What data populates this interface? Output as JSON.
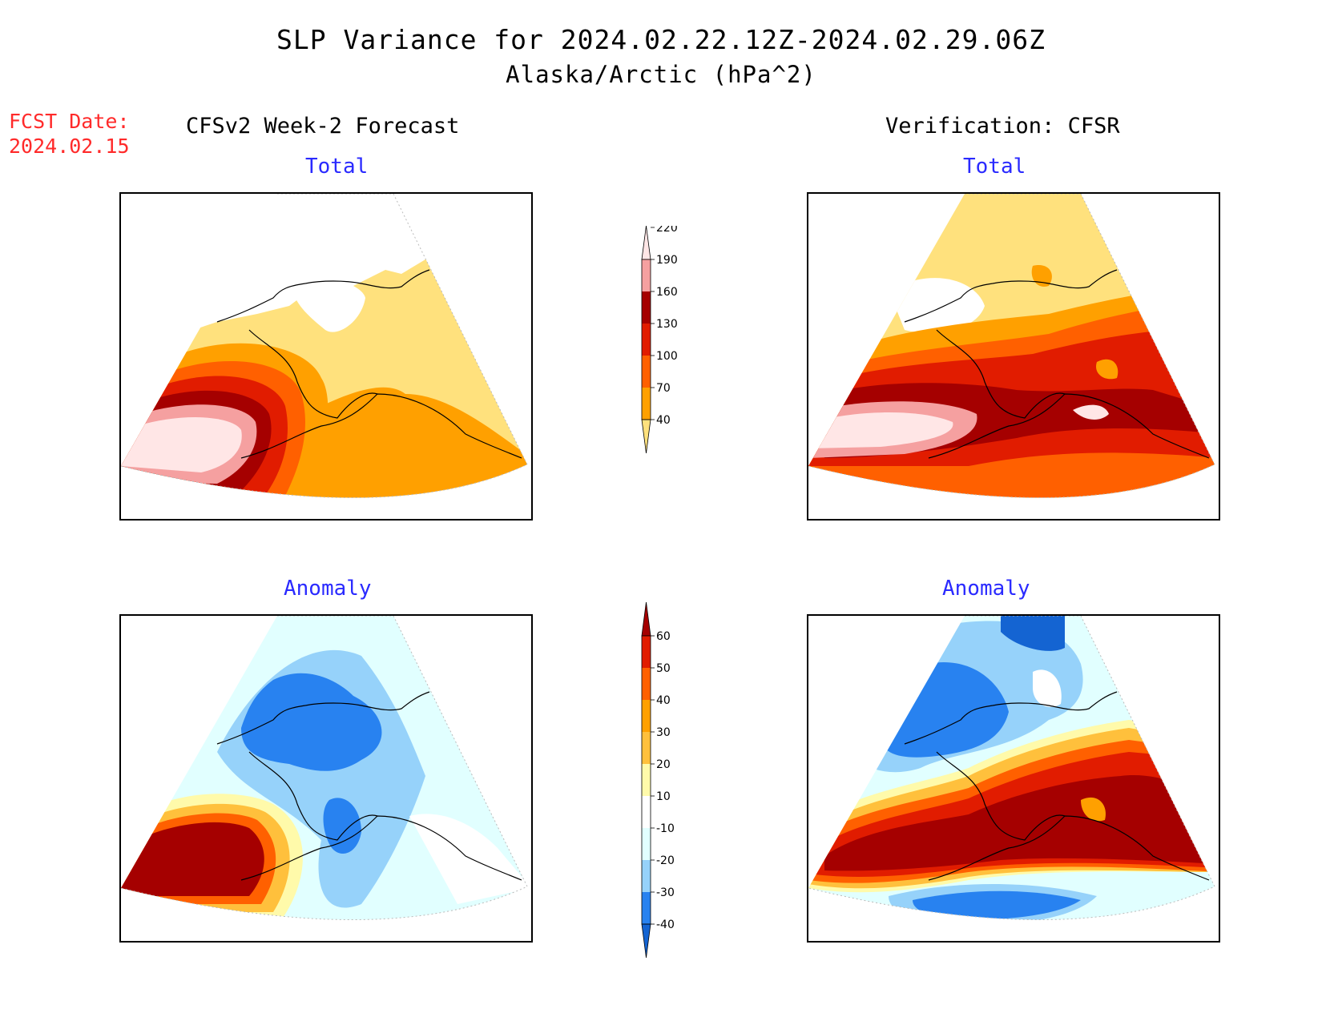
{
  "title": "SLP Variance for 2024.02.22.12Z-2024.02.29.06Z",
  "subtitle": "Alaska/Arctic (hPa^2)",
  "fcst_date": {
    "label": "FCST Date:",
    "value": "2024.02.15"
  },
  "columns": {
    "left": "CFSv2 Week-2 Forecast",
    "right": "Verification: CFSR"
  },
  "panels": {
    "total": "Total",
    "anomaly": "Anomaly"
  },
  "legend_total": {
    "levels": [
      "40",
      "70",
      "100",
      "130",
      "160",
      "190",
      "220"
    ],
    "colors": [
      "#ffe17d",
      "#ffa000",
      "#ff6000",
      "#e11c00",
      "#a50000",
      "#f5a0a0",
      "#ffe6e6"
    ]
  },
  "legend_anomaly": {
    "levels": [
      "-40",
      "-30",
      "-20",
      "-10",
      "10",
      "20",
      "30",
      "40",
      "50",
      "60"
    ],
    "colors": [
      "#1464d2",
      "#2882f0",
      "#96d2fa",
      "#e1ffff",
      "#ffffff",
      "#fffaaa",
      "#ffc03c",
      "#ffa000",
      "#ff6000",
      "#e11c00",
      "#a50000"
    ]
  },
  "colors": {
    "title_blue": "#2a2aff",
    "fcst_red": "#ff2a2a"
  }
}
